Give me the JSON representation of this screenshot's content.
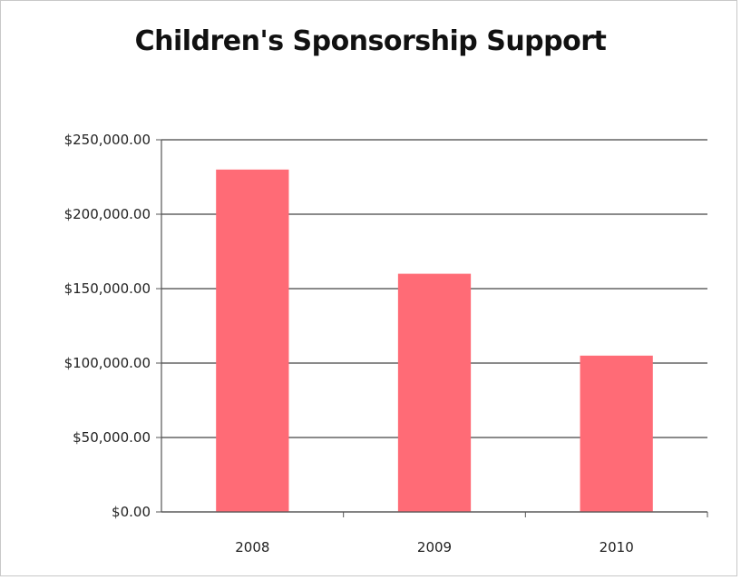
{
  "chart_data": {
    "type": "bar",
    "title": "Children's Sponsorship Support",
    "categories": [
      "2008",
      "2009",
      "2010"
    ],
    "values": [
      230000,
      160000,
      105000
    ],
    "ylim": [
      0,
      250000
    ],
    "yticks": [
      {
        "value": 0,
        "label": "$0.00"
      },
      {
        "value": 50000,
        "label": "$50,000.00"
      },
      {
        "value": 100000,
        "label": "$100,000.00"
      },
      {
        "value": 150000,
        "label": "$150,000.00"
      },
      {
        "value": 200000,
        "label": "$200,000.00"
      },
      {
        "value": 250000,
        "label": "$250,000.00"
      }
    ],
    "xlabel": "",
    "ylabel": "",
    "grid": true,
    "legend": "none",
    "colors": {
      "bar": "#ff6b76",
      "grid": "#444444",
      "axis": "#555555"
    }
  }
}
